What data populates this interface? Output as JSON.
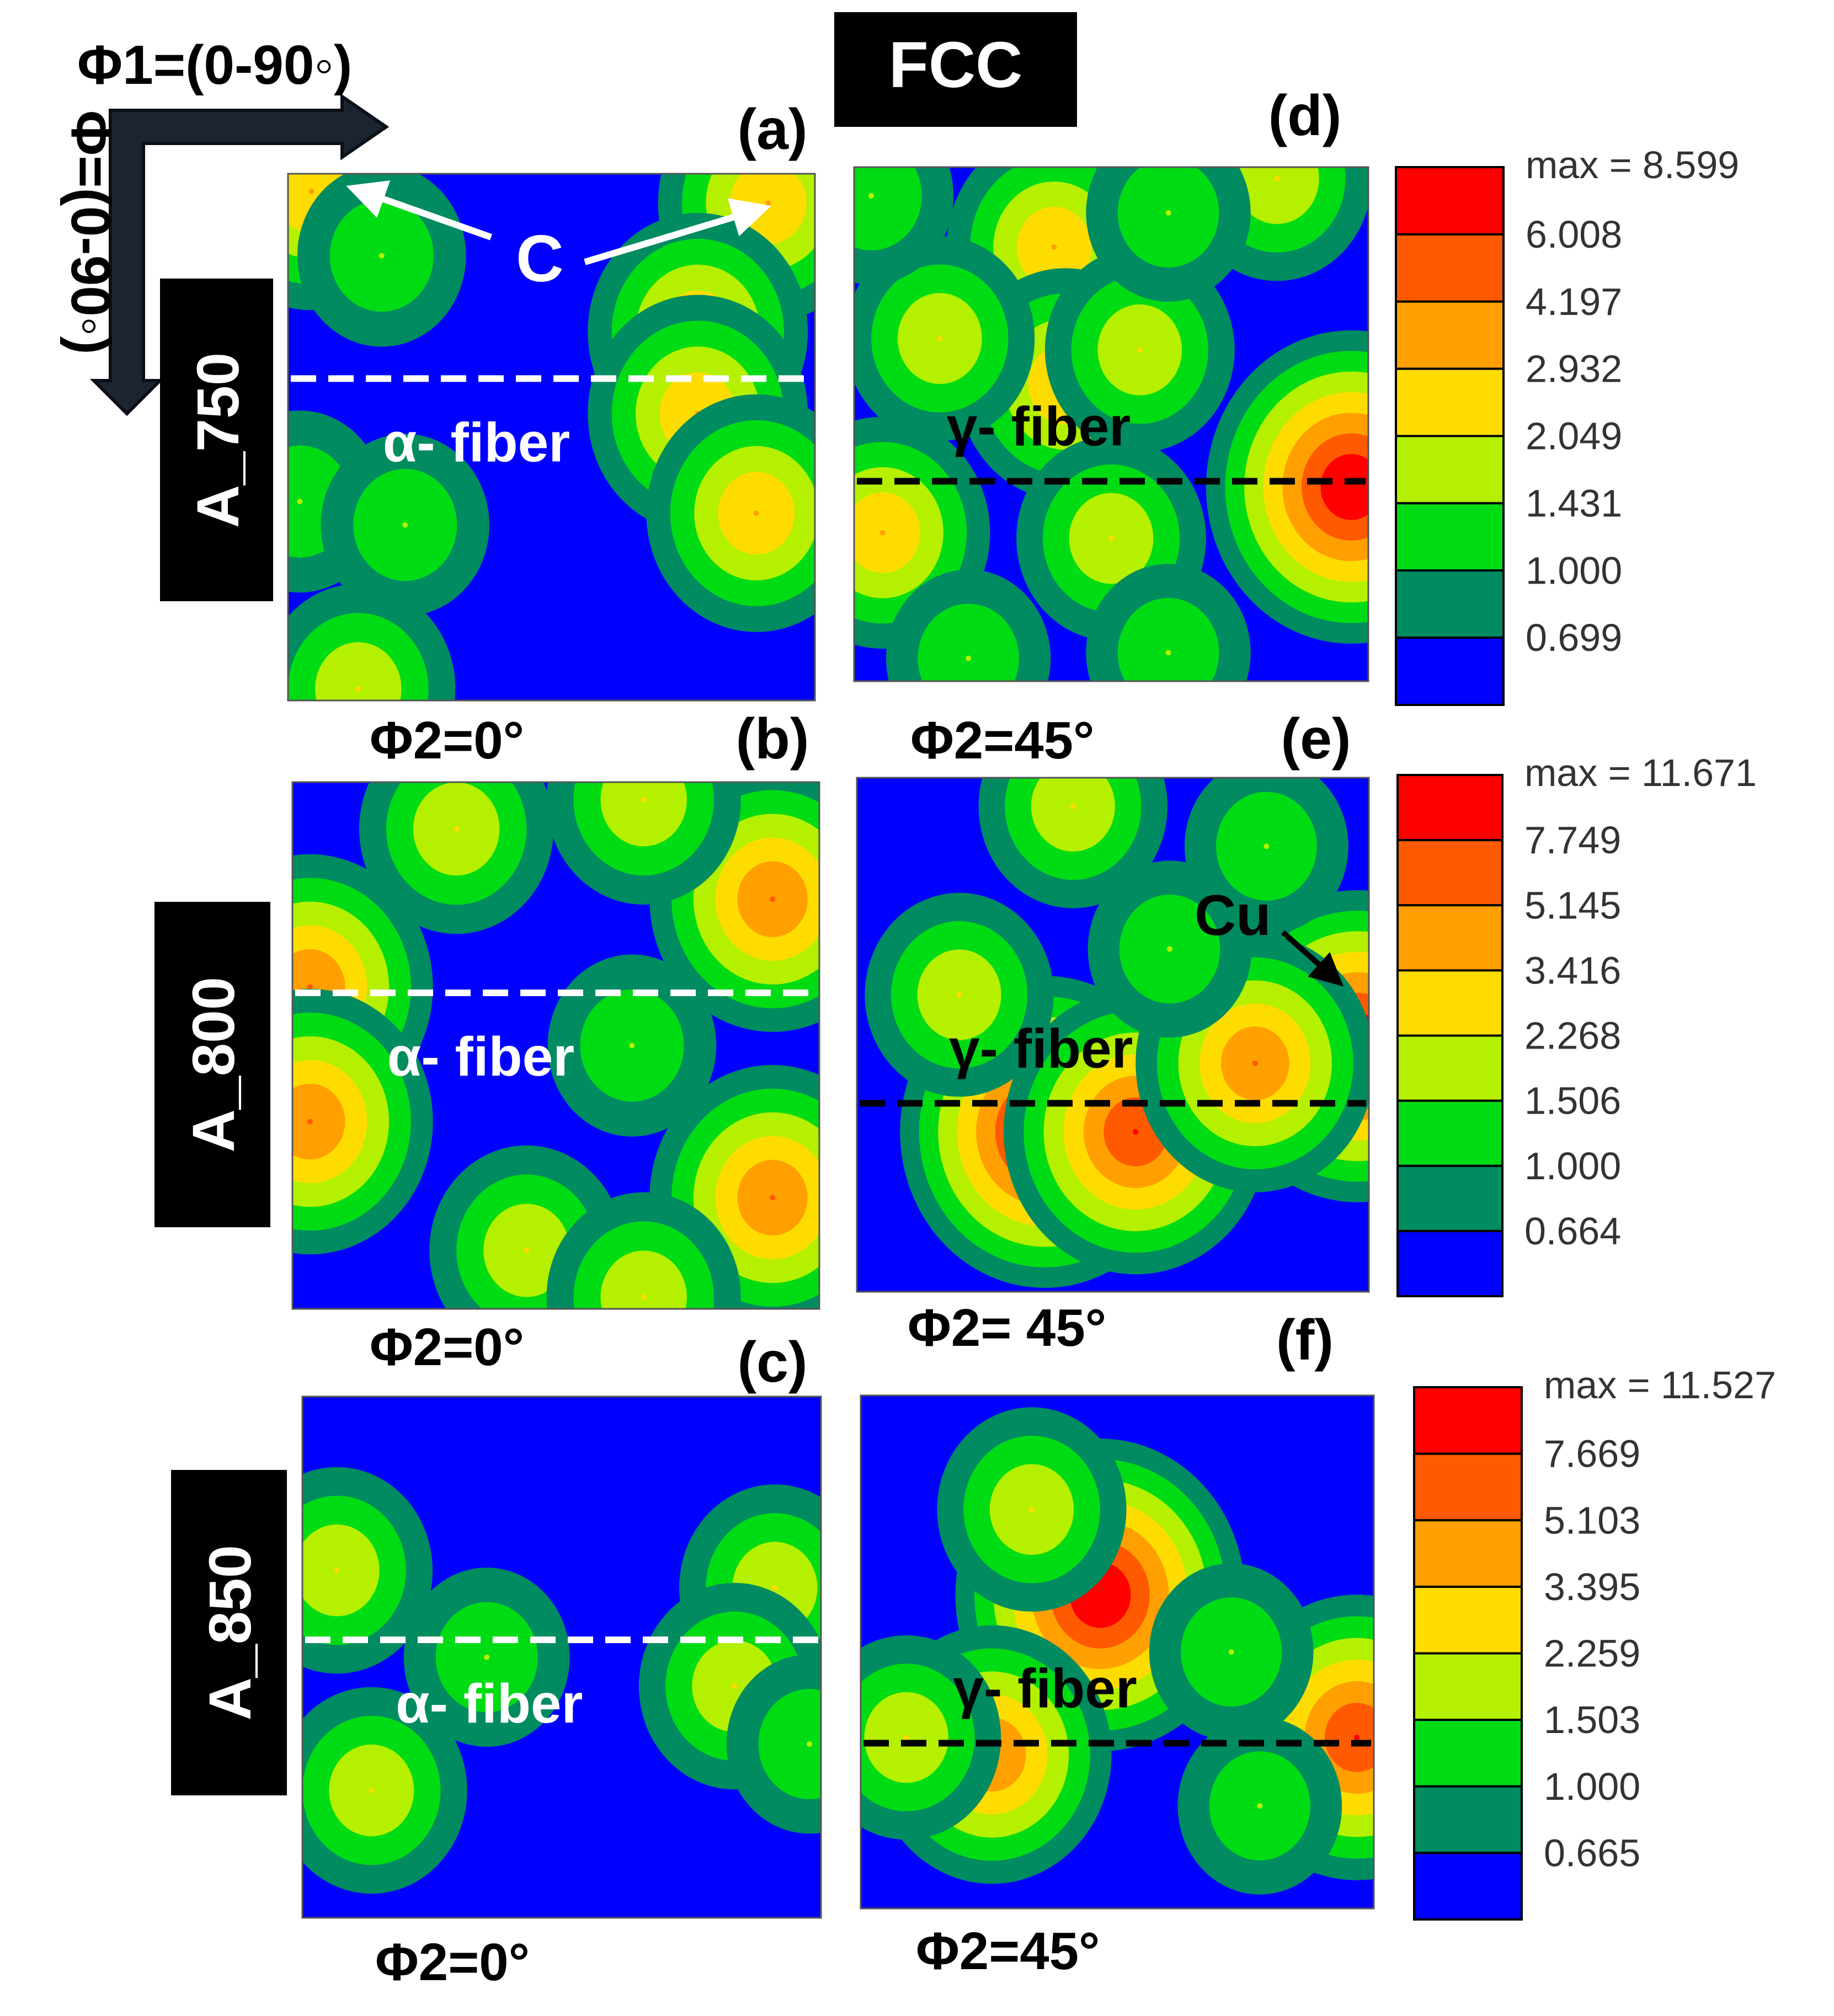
{
  "header": {
    "label": "FCC",
    "bg": "#000000",
    "fg": "#ffffff"
  },
  "axes_indicator": {
    "x_label": "Φ1=(0-90◦)",
    "y_label": "Φ=(0-90◦)"
  },
  "rows": [
    {
      "sample": "A_750"
    },
    {
      "sample": "A_800"
    },
    {
      "sample": "A_850"
    }
  ],
  "palette": {
    "levels": [
      "#0000ff",
      "#008b61",
      "#00dc14",
      "#b4f000",
      "#ffdc00",
      "#ffa000",
      "#ff5a00",
      "#ff0000"
    ],
    "dashed_white": "#ffffff",
    "dashed_black": "#000000"
  },
  "chart_data": [
    {
      "type": "heatmap",
      "panel": "(a)",
      "sample": "A_750",
      "phi2_label": "Φ2=0°",
      "fiber": "α- fiber",
      "annotation": "C",
      "xlabel": "Φ1",
      "ylabel": "Φ",
      "xlim": [
        0,
        90
      ],
      "ylim": [
        0,
        90
      ],
      "fiber_line_phi": 35,
      "peaks": [
        {
          "phi1": 4,
          "phi": 3,
          "level": 2.2
        },
        {
          "phi1": 82,
          "phi": 5,
          "level": 2.9
        },
        {
          "phi1": 70,
          "phi": 27,
          "level": 2.7
        },
        {
          "phi1": 70,
          "phi": 41,
          "level": 2.5
        },
        {
          "phi1": 80,
          "phi": 58,
          "level": 2.6
        },
        {
          "phi1": 16,
          "phi": 14,
          "level": 1.2
        },
        {
          "phi1": 2,
          "phi": 56,
          "level": 1.2
        },
        {
          "phi1": 20,
          "phi": 60,
          "level": 1.2
        },
        {
          "phi1": 12,
          "phi": 88,
          "level": 1.5
        }
      ]
    },
    {
      "type": "heatmap",
      "panel": "(d)",
      "sample": "A_750",
      "phi2_label": "Φ2=45°",
      "fiber": "γ- fiber",
      "xlabel": "Φ1",
      "ylabel": "Φ",
      "xlim": [
        0,
        90
      ],
      "ylim": [
        0,
        90
      ],
      "fiber_line_phi": 55,
      "peaks": [
        {
          "phi1": 35,
          "phi": 14,
          "level": 2.2
        },
        {
          "phi1": 37,
          "phi": 38,
          "level": 2.3
        },
        {
          "phi1": 50,
          "phi": 32,
          "level": 1.8
        },
        {
          "phi1": 15,
          "phi": 30,
          "level": 1.8
        },
        {
          "phi1": 45,
          "phi": 65,
          "level": 1.9
        },
        {
          "phi1": 87,
          "phi": 56,
          "level": 7.5
        },
        {
          "phi1": 5,
          "phi": 64,
          "level": 2.2
        },
        {
          "phi1": 74,
          "phi": 2,
          "level": 1.8
        },
        {
          "phi1": 3,
          "phi": 5,
          "level": 1.2
        },
        {
          "phi1": 55,
          "phi": 8,
          "level": 1.2
        },
        {
          "phi1": 55,
          "phi": 85,
          "level": 1.2
        },
        {
          "phi1": 20,
          "phi": 86,
          "level": 1.2
        }
      ]
    },
    {
      "type": "heatmap",
      "panel": "(b)",
      "sample": "A_800",
      "phi2_label": "Φ2=0°",
      "fiber": "α- fiber",
      "xlabel": "Φ1",
      "ylabel": "Φ",
      "xlim": [
        0,
        90
      ],
      "ylim": [
        0,
        90
      ],
      "fiber_line_phi": 36,
      "peaks": [
        {
          "phi1": 82,
          "phi": 20,
          "level": 4.5
        },
        {
          "phi1": 82,
          "phi": 71,
          "level": 4.5
        },
        {
          "phi1": 3,
          "phi": 35,
          "level": 4.5
        },
        {
          "phi1": 3,
          "phi": 58,
          "level": 4.5
        },
        {
          "phi1": 28,
          "phi": 8,
          "level": 2.0
        },
        {
          "phi1": 40,
          "phi": 80,
          "level": 2.0
        },
        {
          "phi1": 58,
          "phi": 45,
          "level": 1.2
        },
        {
          "phi1": 60,
          "phi": 3,
          "level": 2.0
        },
        {
          "phi1": 60,
          "phi": 88,
          "level": 2.0
        }
      ]
    },
    {
      "type": "heatmap",
      "panel": "(e)",
      "sample": "A_800",
      "phi2_label": "Φ2= 45°",
      "fiber": "γ- fiber",
      "annotation": "Cu",
      "xlabel": "Φ1",
      "ylabel": "Φ",
      "xlim": [
        0,
        90
      ],
      "ylim": [
        0,
        90
      ],
      "fiber_line_phi": 57,
      "peaks": [
        {
          "phi1": 33,
          "phi": 62,
          "level": 10.5
        },
        {
          "phi1": 49,
          "phi": 62,
          "level": 6.0
        },
        {
          "phi1": 88,
          "phi": 47,
          "level": 10.5
        },
        {
          "phi1": 70,
          "phi": 50,
          "level": 4.5
        },
        {
          "phi1": 38,
          "phi": 5,
          "level": 2.0
        },
        {
          "phi1": 18,
          "phi": 38,
          "level": 1.6
        },
        {
          "phi1": 55,
          "phi": 30,
          "level": 1.5
        },
        {
          "phi1": 72,
          "phi": 12,
          "level": 1.2
        }
      ]
    },
    {
      "type": "heatmap",
      "panel": "(c)",
      "sample": "A_850",
      "phi2_label": "Φ2=0°",
      "fiber": "α- fiber",
      "xlabel": "Φ1",
      "ylabel": "Φ",
      "xlim": [
        0,
        90
      ],
      "ylim": [
        0,
        90
      ],
      "fiber_line_phi": 42,
      "peaks": [
        {
          "phi1": 82,
          "phi": 33,
          "level": 1.8
        },
        {
          "phi1": 75,
          "phi": 50,
          "level": 1.8
        },
        {
          "phi1": 6,
          "phi": 30,
          "level": 1.6
        },
        {
          "phi1": 12,
          "phi": 68,
          "level": 1.6
        },
        {
          "phi1": 32,
          "phi": 45,
          "level": 1.1
        },
        {
          "phi1": 88,
          "phi": 60,
          "level": 1.1
        }
      ]
    },
    {
      "type": "heatmap",
      "panel": "(f)",
      "sample": "A_850",
      "phi2_label": "Φ2=45°",
      "fiber": "γ- fiber",
      "xlabel": "Φ1",
      "ylabel": "Φ",
      "xlim": [
        0,
        90
      ],
      "ylim": [
        0,
        90
      ],
      "fiber_line_phi": 61,
      "peaks": [
        {
          "phi1": 42,
          "phi": 35,
          "level": 10.5
        },
        {
          "phi1": 23,
          "phi": 63,
          "level": 5.0
        },
        {
          "phi1": 87,
          "phi": 60,
          "level": 7.5
        },
        {
          "phi1": 30,
          "phi": 20,
          "level": 1.8
        },
        {
          "phi1": 8,
          "phi": 60,
          "level": 1.6
        },
        {
          "phi1": 70,
          "phi": 72,
          "level": 1.2
        },
        {
          "phi1": 65,
          "phi": 45,
          "level": 1.1
        }
      ]
    }
  ],
  "colorbars": [
    {
      "max_label": "max = 8.599",
      "ticks": [
        "6.008",
        "4.197",
        "2.932",
        "2.049",
        "1.431",
        "1.000",
        "0.699"
      ]
    },
    {
      "max_label": "max = 11.671",
      "ticks": [
        "7.749",
        "5.145",
        "3.416",
        "2.268",
        "1.506",
        "1.000",
        "0.664"
      ]
    },
    {
      "max_label": "max = 11.527",
      "ticks": [
        "7.669",
        "5.103",
        "3.395",
        "2.259",
        "1.503",
        "1.000",
        "0.665"
      ]
    }
  ]
}
